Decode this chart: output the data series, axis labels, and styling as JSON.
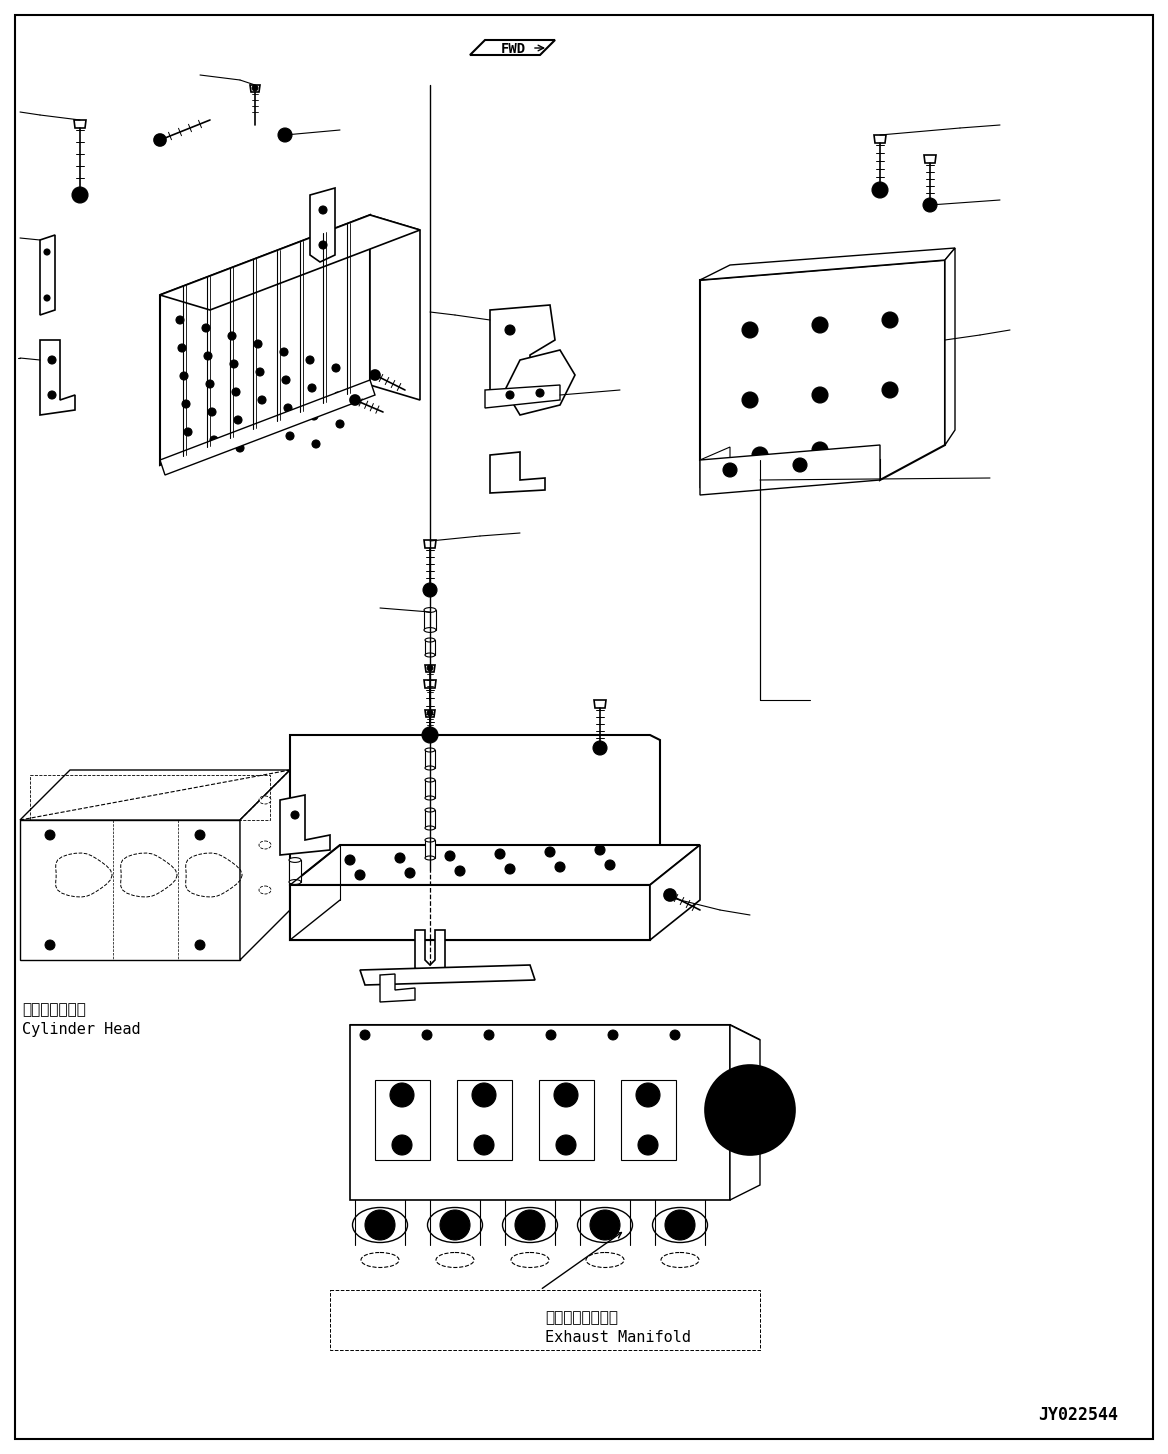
{
  "background_color": "#ffffff",
  "line_color": "#000000",
  "figure_width": 11.68,
  "figure_height": 14.54,
  "dpi": 100,
  "labels": {
    "cylinder_head_jp": "シリンダヘッド",
    "cylinder_head_en": "Cylinder Head",
    "exhaust_manifold_jp": "排気マニホールド",
    "exhaust_manifold_en": "Exhaust Manifold",
    "drawing_number": "JY022544",
    "fwd_label": "FWD"
  },
  "font_size_labels": 11,
  "font_size_drawing_number": 12
}
